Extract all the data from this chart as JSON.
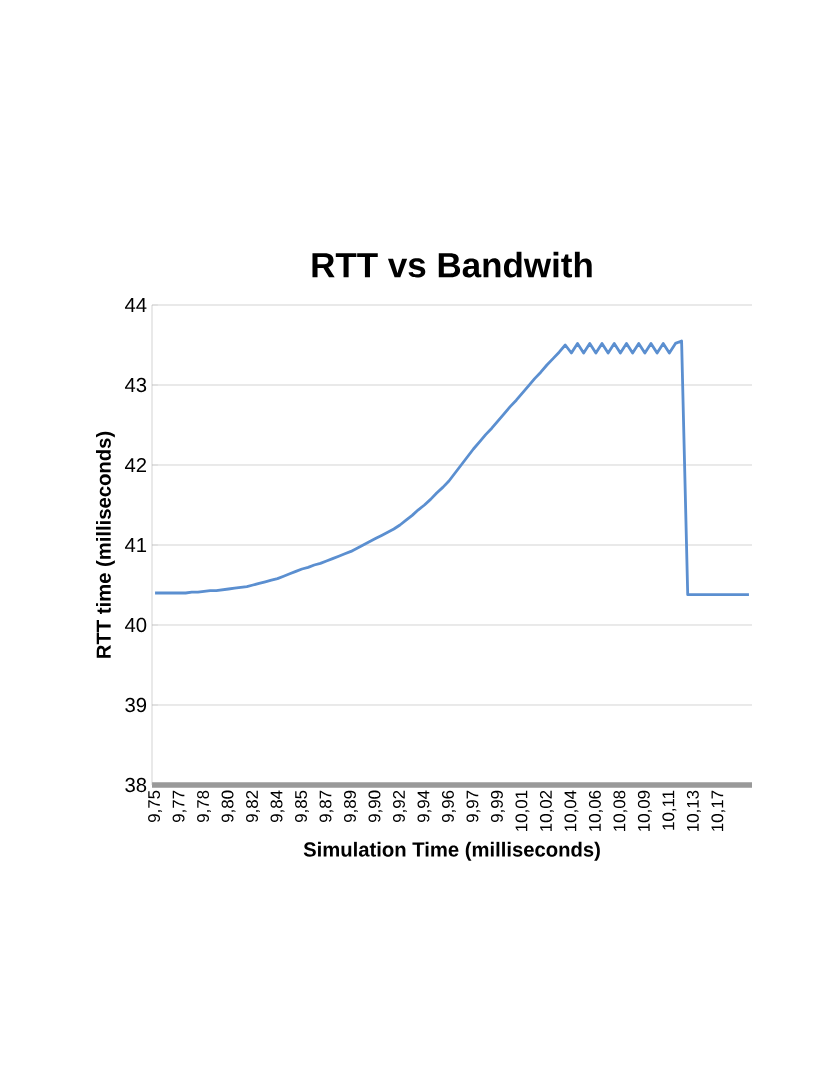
{
  "chart_data": {
    "type": "line",
    "title": "RTT vs Bandwith",
    "xlabel": "Simulation Time (milliseconds)",
    "ylabel": "RTT time (milliseconds)",
    "categories": [
      "9,75",
      null,
      null,
      null,
      "9,77",
      null,
      null,
      null,
      "9,78",
      null,
      null,
      null,
      "9,80",
      null,
      null,
      null,
      "9,82",
      null,
      null,
      null,
      "9,84",
      null,
      null,
      null,
      "9,85",
      null,
      null,
      null,
      "9,87",
      null,
      null,
      null,
      "9,89",
      null,
      null,
      null,
      "9,90",
      null,
      null,
      null,
      "9,92",
      null,
      null,
      null,
      "9,94",
      null,
      null,
      null,
      "9,96",
      null,
      null,
      null,
      "9,97",
      null,
      null,
      null,
      "9,99",
      null,
      null,
      null,
      "10,01",
      null,
      null,
      null,
      "10,02",
      null,
      null,
      null,
      "10,04",
      null,
      null,
      null,
      "10,06",
      null,
      null,
      null,
      "10,08",
      null,
      null,
      null,
      "10,09",
      null,
      null,
      null,
      "10,11",
      null,
      null,
      null,
      "10,13",
      null,
      null,
      null,
      "10,17",
      null,
      null,
      null,
      null,
      null
    ],
    "series": [
      {
        "color": "#5b8fd0",
        "values": [
          40.4,
          40.4,
          40.4,
          40.4,
          40.4,
          40.4,
          40.41,
          40.41,
          40.42,
          40.43,
          40.43,
          40.44,
          40.45,
          40.46,
          40.47,
          40.48,
          40.5,
          40.52,
          40.54,
          40.56,
          40.58,
          40.61,
          40.64,
          40.67,
          40.7,
          40.72,
          40.75,
          40.77,
          40.8,
          40.83,
          40.86,
          40.89,
          40.92,
          40.96,
          41.0,
          41.04,
          41.08,
          41.12,
          41.16,
          41.2,
          41.25,
          41.31,
          41.37,
          41.44,
          41.5,
          41.57,
          41.65,
          41.72,
          41.8,
          41.9,
          42.0,
          42.1,
          42.2,
          42.29,
          42.38,
          42.46,
          42.55,
          42.64,
          42.73,
          42.81,
          42.9,
          42.99,
          43.08,
          43.16,
          43.25,
          43.33,
          43.41,
          43.5,
          43.4,
          43.52,
          43.4,
          43.52,
          43.4,
          43.52,
          43.4,
          43.52,
          43.4,
          43.52,
          43.4,
          43.52,
          43.4,
          43.52,
          43.4,
          43.52,
          43.4,
          43.52,
          43.55,
          40.38,
          40.38,
          40.38,
          40.38,
          40.38,
          40.38,
          40.38,
          40.38,
          40.38,
          40.38,
          40.38
        ]
      }
    ],
    "ylim": [
      38,
      44
    ],
    "yticks": [
      38,
      39,
      40,
      41,
      42,
      43,
      44
    ],
    "grid": "y",
    "marker": "none",
    "line_style": "solid"
  }
}
